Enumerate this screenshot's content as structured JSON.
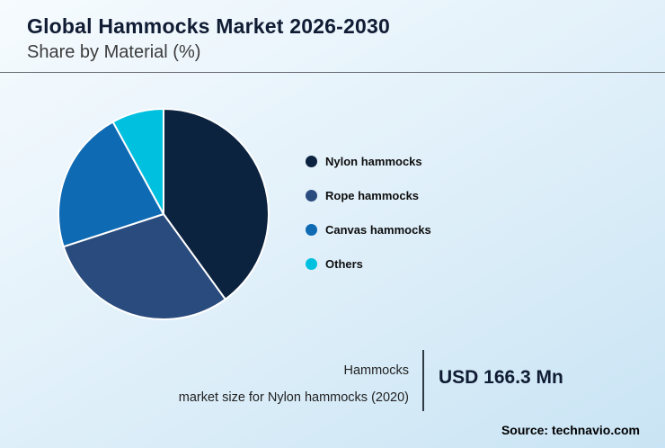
{
  "header": {
    "title": "Global Hammocks Market 2026-2030",
    "subtitle": "Share by Material (%)"
  },
  "chart_data": {
    "type": "pie",
    "title": "Global Hammocks Market 2026-2030",
    "subtitle": "Share by Material (%)",
    "legend_position": "right",
    "start_angle_deg": 0,
    "direction": "clockwise",
    "slices": [
      {
        "label": "Nylon hammocks",
        "value": 40,
        "color": "#0c2340"
      },
      {
        "label": "Rope hammocks",
        "value": 30,
        "color": "#2a4b7d"
      },
      {
        "label": "Canvas hammocks",
        "value": 22,
        "color": "#0f6ab4"
      },
      {
        "label": "Others",
        "value": 8,
        "color": "#00c0e0"
      }
    ]
  },
  "footer": {
    "annotation_line1": "Hammocks",
    "annotation_line2": "market size for Nylon hammocks (2020)",
    "value": "USD 166.3 Mn",
    "source": "Source: technavio.com"
  }
}
